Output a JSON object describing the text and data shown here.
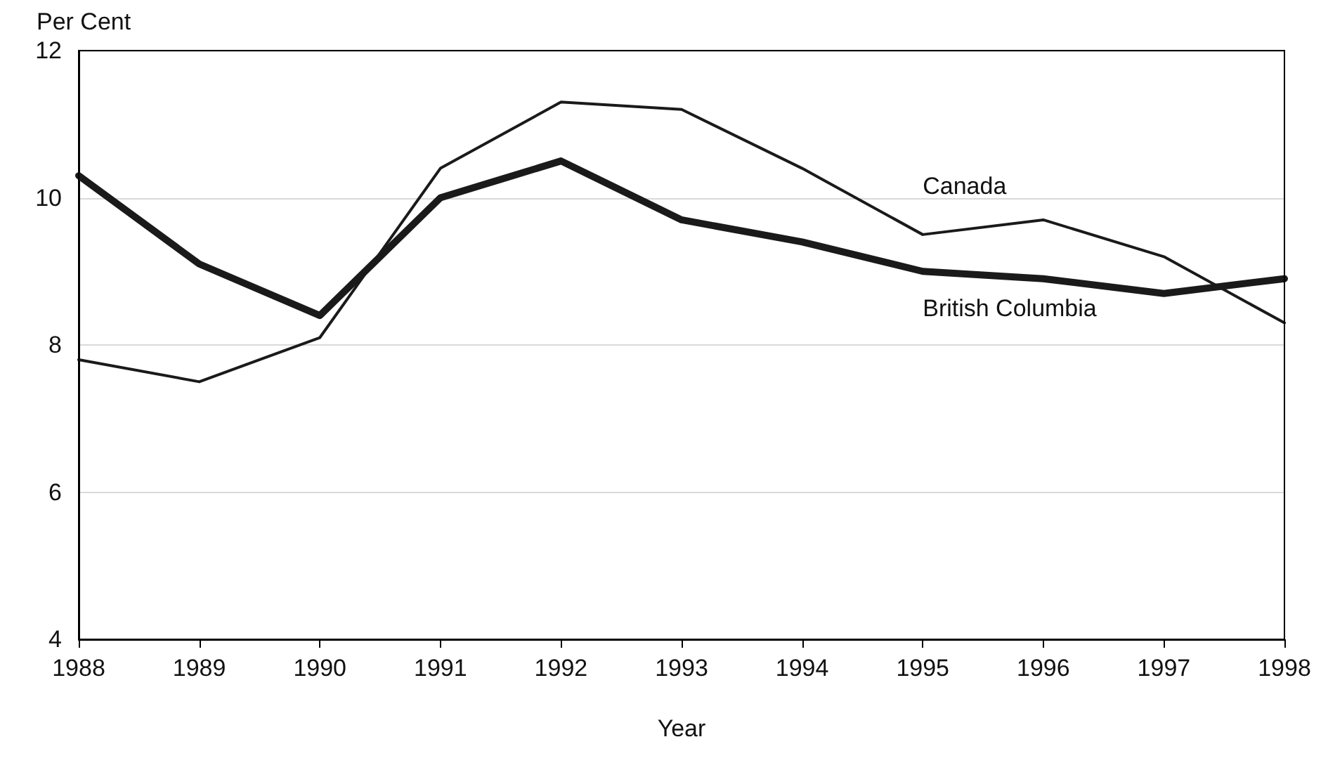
{
  "chart_data": {
    "type": "line",
    "xlabel": "Year",
    "ylabel": "Per Cent",
    "x": [
      1988,
      1989,
      1990,
      1991,
      1992,
      1993,
      1994,
      1995,
      1996,
      1997,
      1998
    ],
    "series": [
      {
        "name": "Canada",
        "color": "#1a1a1a",
        "values": [
          7.8,
          7.5,
          8.1,
          10.4,
          11.3,
          11.2,
          10.4,
          9.5,
          9.7,
          9.2,
          8.3
        ]
      },
      {
        "name": "British Columbia",
        "color": "#1a1a1a",
        "values": [
          10.3,
          9.1,
          8.4,
          10.0,
          10.5,
          9.7,
          9.4,
          9.0,
          8.9,
          8.7,
          8.9
        ]
      }
    ],
    "xlim": [
      1988,
      1998
    ],
    "xticks": [
      1988,
      1989,
      1990,
      1991,
      1992,
      1993,
      1994,
      1995,
      1996,
      1997,
      1998
    ],
    "ylim": [
      4,
      12
    ],
    "yticks": [
      4,
      6,
      8,
      10,
      12
    ],
    "grid": "y",
    "legend": false,
    "marker": "none",
    "line_style": "solid"
  }
}
